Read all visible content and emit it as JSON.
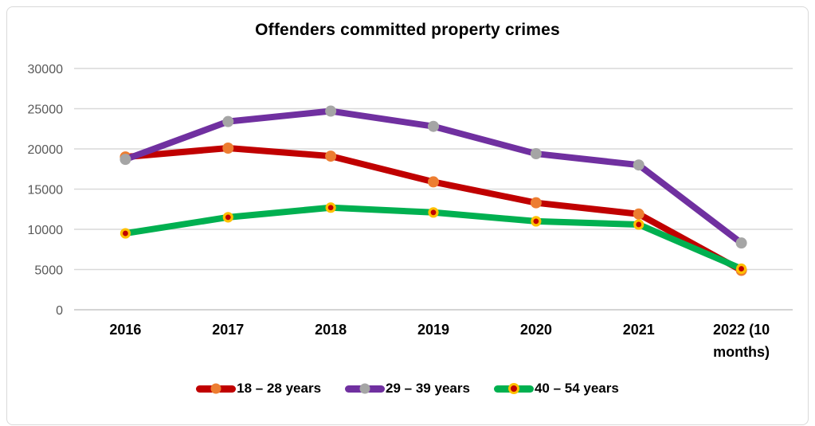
{
  "chart_data": {
    "type": "line",
    "title": "Offenders committed property crimes",
    "categories": [
      "2016",
      "2017",
      "2018",
      "2019",
      "2020",
      "2021",
      "2022 (10 months)"
    ],
    "x_tick_lines": [
      [
        "2016"
      ],
      [
        "2017"
      ],
      [
        "2018"
      ],
      [
        "2019"
      ],
      [
        "2020"
      ],
      [
        "2021"
      ],
      [
        "2022 (10",
        "months)"
      ]
    ],
    "y_ticks": [
      0,
      5000,
      10000,
      15000,
      20000,
      25000,
      30000
    ],
    "ylim": [
      0,
      30000
    ],
    "grid": true,
    "legend_position": "bottom",
    "series": [
      {
        "name": "18 – 28 years",
        "values": [
          19000,
          20100,
          19100,
          15900,
          13300,
          11900,
          4900
        ],
        "line_color": "#C00000",
        "marker_color": "#ED7D31",
        "marker_ring": null
      },
      {
        "name": "29 – 39 years",
        "values": [
          18700,
          23400,
          24700,
          22800,
          19400,
          18000,
          8300
        ],
        "line_color": "#7030A0",
        "marker_color": "#A5A5A5",
        "marker_ring": null
      },
      {
        "name": "40 – 54 years",
        "values": [
          9500,
          11500,
          12700,
          12100,
          11000,
          10600,
          5100
        ],
        "line_color": "#00B050",
        "marker_color": "#C00000",
        "marker_ring": "#FFC000"
      }
    ],
    "colors": {
      "gridline": "#D9D9D9",
      "axis_line": "#C6C6C6",
      "y_label": "#595959",
      "x_label": "#000000",
      "title": "#000000",
      "frame_border": "#D9D9D9"
    }
  }
}
